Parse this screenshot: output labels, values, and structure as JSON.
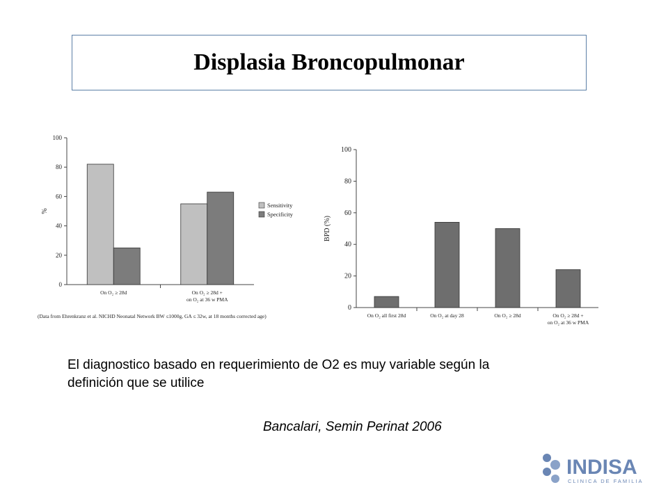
{
  "slide": {
    "title": "Displasia Broncopulmonar",
    "body": "El diagnostico basado en requerimiento de O2 es muy variable según la definición que se utilice",
    "citation": "Bancalari, Semin Perinat 2006"
  },
  "logo": {
    "name": "INDISA",
    "tagline": "CLINICA DE FAMILIA",
    "color": "#6a86b4"
  },
  "chart_data": [
    {
      "type": "bar",
      "ylabel": "%",
      "ylim": [
        0,
        100
      ],
      "yticks": [
        "0",
        "20",
        "40",
        "60",
        "80",
        "100"
      ],
      "categories": [
        [
          "On O₂ ≥ 28d"
        ],
        [
          "On O₂ ≥ 28d +",
          "on O₂ at 36 w PMA"
        ]
      ],
      "series": [
        {
          "name": "Sensitivity",
          "color": "#c0c0c0",
          "values": [
            82,
            55
          ]
        },
        {
          "name": "Specificity",
          "color": "#7c7c7c",
          "values": [
            25,
            63
          ]
        }
      ],
      "legend": "right",
      "footnote": "(Data from Ehrenkranz et al. NICHD Neonatal Network BW ≤1000g, GA ≤ 32w, at 18 months corrected age)"
    },
    {
      "type": "bar",
      "ylabel": "BPD (%)",
      "ylim": [
        0,
        100
      ],
      "yticks": [
        "0",
        "20",
        "40",
        "60",
        "80",
        "100"
      ],
      "categories": [
        [
          "On O₂ all first 28d"
        ],
        [
          "On O₂ at day 28"
        ],
        [
          "On O₂ ≥ 28d"
        ],
        [
          "On O₂ ≥ 28d +",
          "on O₂ at 36 w PMA"
        ]
      ],
      "series": [
        {
          "color": "#6e6e6e",
          "values": [
            7,
            54,
            50,
            24
          ]
        }
      ]
    }
  ]
}
